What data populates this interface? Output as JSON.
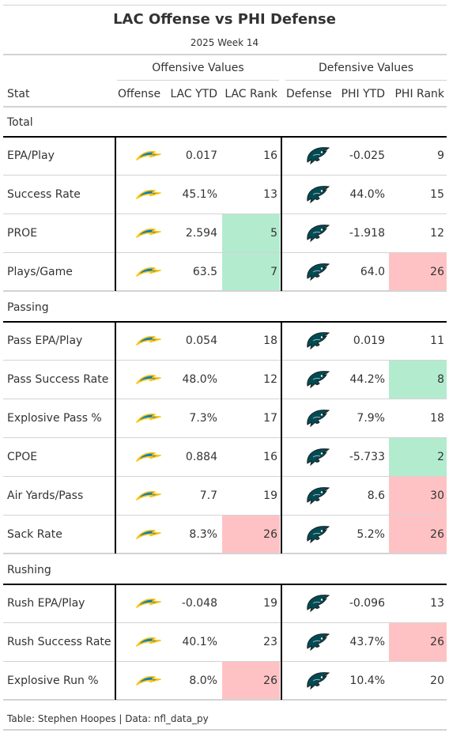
{
  "title": "LAC Offense vs PHI Defense",
  "subtitle": "2025 Week 14",
  "spanners": {
    "offense": "Offensive Values",
    "defense": "Defensive Values"
  },
  "columns": {
    "stat": "Stat",
    "offense": "Offense",
    "off_ytd": "LAC YTD",
    "off_rank": "LAC Rank",
    "defense": "Defense",
    "def_ytd": "PHI YTD",
    "def_rank": "PHI Rank"
  },
  "colors": {
    "good": "#b3ebcf",
    "bad": "#ffc2c4",
    "chargers_blue": "#0080c6",
    "chargers_gold": "#ffc20e",
    "eagles_green": "#004c54"
  },
  "icons": {
    "offense": "chargers-bolt-icon",
    "defense": "eagles-head-icon"
  },
  "groups": [
    {
      "label": "Total",
      "rows": [
        {
          "stat": "EPA/Play",
          "off_ytd": "0.017",
          "off_rank": "16",
          "off_tier": "none",
          "def_ytd": "-0.025",
          "def_rank": "9",
          "def_tier": "none"
        },
        {
          "stat": "Success Rate",
          "off_ytd": "45.1%",
          "off_rank": "13",
          "off_tier": "none",
          "def_ytd": "44.0%",
          "def_rank": "15",
          "def_tier": "none"
        },
        {
          "stat": "PROE",
          "off_ytd": "2.594",
          "off_rank": "5",
          "off_tier": "good",
          "def_ytd": "-1.918",
          "def_rank": "12",
          "def_tier": "none"
        },
        {
          "stat": "Plays/Game",
          "off_ytd": "63.5",
          "off_rank": "7",
          "off_tier": "good",
          "def_ytd": "64.0",
          "def_rank": "26",
          "def_tier": "bad"
        }
      ]
    },
    {
      "label": "Passing",
      "rows": [
        {
          "stat": "Pass EPA/Play",
          "off_ytd": "0.054",
          "off_rank": "18",
          "off_tier": "none",
          "def_ytd": "0.019",
          "def_rank": "11",
          "def_tier": "none"
        },
        {
          "stat": "Pass Success Rate",
          "off_ytd": "48.0%",
          "off_rank": "12",
          "off_tier": "none",
          "def_ytd": "44.2%",
          "def_rank": "8",
          "def_tier": "good"
        },
        {
          "stat": "Explosive Pass %",
          "off_ytd": "7.3%",
          "off_rank": "17",
          "off_tier": "none",
          "def_ytd": "7.9%",
          "def_rank": "18",
          "def_tier": "none"
        },
        {
          "stat": "CPOE",
          "off_ytd": "0.884",
          "off_rank": "16",
          "off_tier": "none",
          "def_ytd": "-5.733",
          "def_rank": "2",
          "def_tier": "good"
        },
        {
          "stat": "Air Yards/Pass",
          "off_ytd": "7.7",
          "off_rank": "19",
          "off_tier": "none",
          "def_ytd": "8.6",
          "def_rank": "30",
          "def_tier": "bad"
        },
        {
          "stat": "Sack Rate",
          "off_ytd": "8.3%",
          "off_rank": "26",
          "off_tier": "bad",
          "def_ytd": "5.2%",
          "def_rank": "26",
          "def_tier": "bad"
        }
      ]
    },
    {
      "label": "Rushing",
      "rows": [
        {
          "stat": "Rush EPA/Play",
          "off_ytd": "-0.048",
          "off_rank": "19",
          "off_tier": "none",
          "def_ytd": "-0.096",
          "def_rank": "13",
          "def_tier": "none"
        },
        {
          "stat": "Rush Success Rate",
          "off_ytd": "40.1%",
          "off_rank": "23",
          "off_tier": "none",
          "def_ytd": "43.7%",
          "def_rank": "26",
          "def_tier": "bad"
        },
        {
          "stat": "Explosive Run %",
          "off_ytd": "8.0%",
          "off_rank": "26",
          "off_tier": "bad",
          "def_ytd": "10.4%",
          "def_rank": "20",
          "def_tier": "none"
        }
      ]
    }
  ],
  "footer": "Table: Stephen Hoopes | Data: nfl_data_py"
}
